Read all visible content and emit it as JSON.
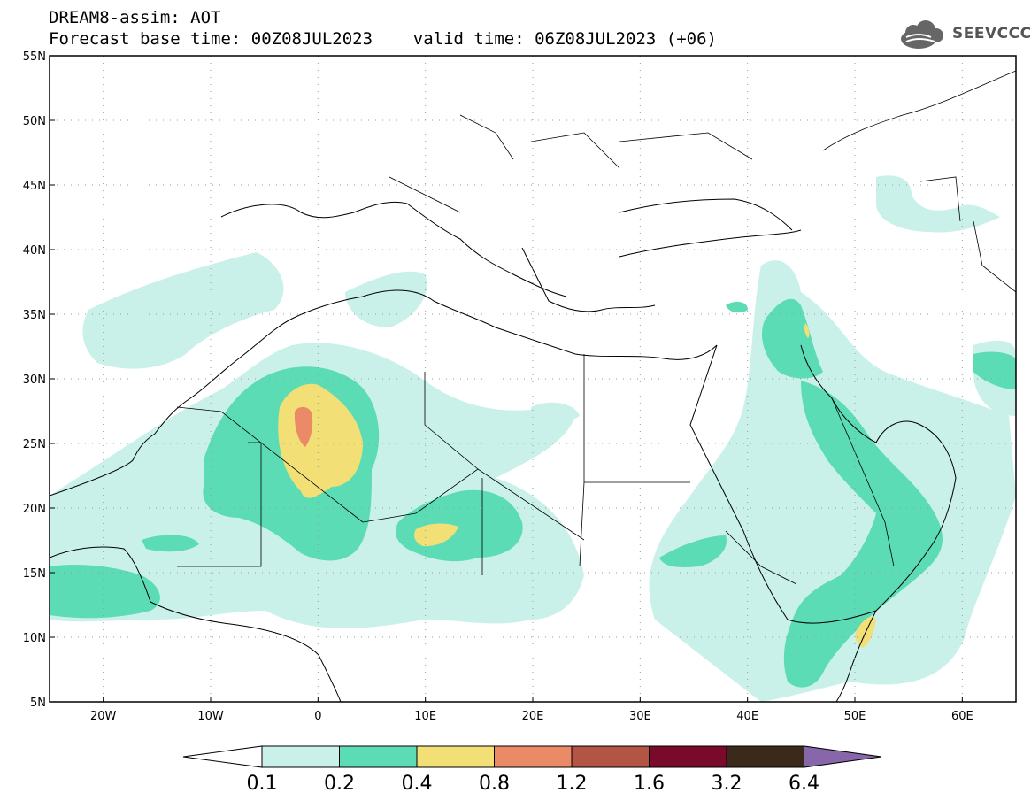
{
  "header": {
    "title_line1": "DREAM8-assim: AOT",
    "title_line2": "Forecast base time: 00Z08JUL2023    valid time: 06Z08JUL2023 (+06)"
  },
  "logo": {
    "text": "SEEVCCC",
    "icon": "cloud-icon"
  },
  "map": {
    "variable": "AOT",
    "lat_labels": [
      "55N",
      "50N",
      "45N",
      "40N",
      "35N",
      "30N",
      "25N",
      "20N",
      "15N",
      "10N",
      "5N"
    ],
    "lon_labels": [
      "20W",
      "10W",
      "0",
      "10E",
      "20E",
      "30E",
      "40E",
      "50E",
      "60E"
    ],
    "lat_range": [
      5,
      55
    ],
    "lon_range": [
      -25,
      65
    ],
    "grid": "dotted"
  },
  "colorbar": {
    "levels": [
      "0.1",
      "0.2",
      "0.4",
      "0.8",
      "1.2",
      "1.6",
      "3.2",
      "6.4"
    ],
    "colors": [
      "#c9f1ea",
      "#5bdcb4",
      "#f2e076",
      "#ea8a66",
      "#b35544",
      "#7a0a2c",
      "#3b2a1a"
    ],
    "over_color": "#8866aa",
    "under_color": "#ffffff"
  },
  "palette": {
    "ocean": "#ffffff",
    "c1": "#c9f1ea",
    "c2": "#5bdcb4",
    "c3": "#f2e076",
    "c4": "#ea8a66"
  }
}
